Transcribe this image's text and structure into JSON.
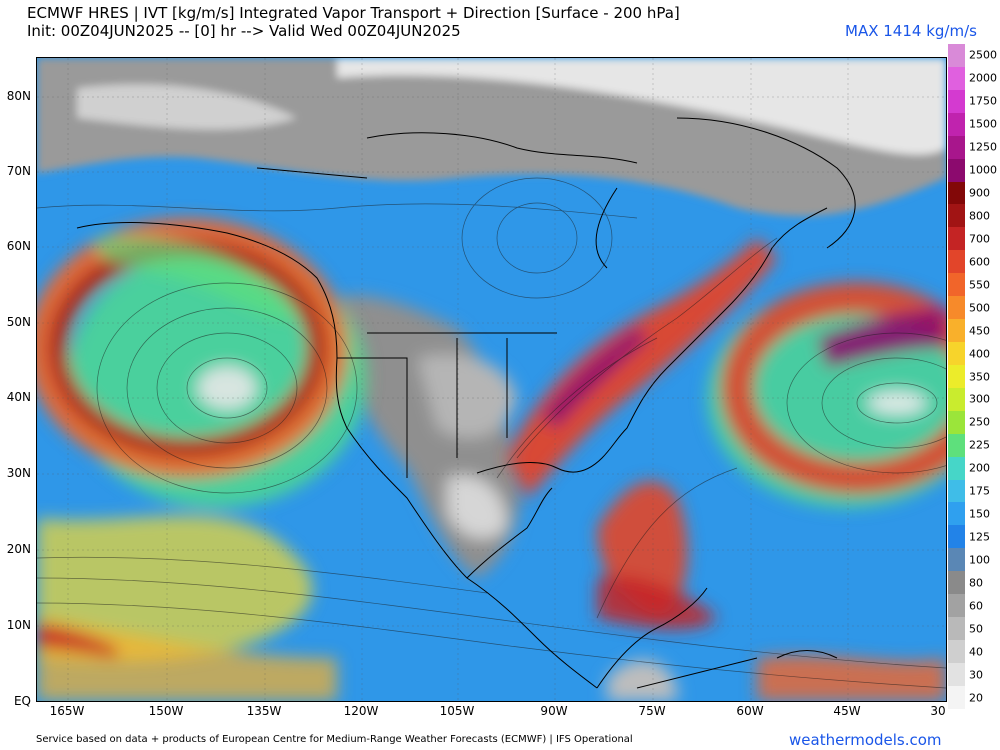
{
  "header": {
    "title": "ECMWF HRES | IVT [kg/m/s] Integrated Vapor Transport + Direction [Surface - 200 hPa]",
    "subtitle": "Init: 00Z04JUN2025 -- [0] hr --> Valid Wed 00Z04JUN2025",
    "max_label": "MAX 1414 kg/m/s"
  },
  "map": {
    "lat_labels": [
      "80N",
      "70N",
      "60N",
      "50N",
      "40N",
      "30N",
      "20N",
      "10N",
      "EQ"
    ],
    "lon_labels": [
      "165W",
      "150W",
      "135W",
      "120W",
      "105W",
      "90W",
      "75W",
      "60W",
      "45W",
      "30"
    ],
    "colors": {
      "ocean_background": "#2f97e8",
      "dry_gray": "#9a9a9a",
      "high_ivt": "#c01818"
    }
  },
  "colorbar": {
    "levels": [
      "20",
      "30",
      "40",
      "50",
      "60",
      "80",
      "100",
      "125",
      "150",
      "175",
      "200",
      "225",
      "250",
      "300",
      "350",
      "400",
      "450",
      "500",
      "550",
      "600",
      "700",
      "800",
      "900",
      "1000",
      "1250",
      "1500",
      "1750",
      "2000",
      "2500"
    ],
    "colors": [
      "#f4f4f4",
      "#e2e2e2",
      "#cfcfcf",
      "#b9b9b9",
      "#a2a2a2",
      "#8a8a8a",
      "#5a87b5",
      "#2283e8",
      "#2fa0ef",
      "#3fbde8",
      "#46d6c8",
      "#5ee07c",
      "#9be53a",
      "#c9ec2e",
      "#ecec2a",
      "#f7d42b",
      "#f9b02b",
      "#f78a2a",
      "#f1652a",
      "#e2452a",
      "#c42424",
      "#a11414",
      "#820808",
      "#8c0a6e",
      "#a8168c",
      "#c023ae",
      "#d43ad0",
      "#e060df",
      "#d98ad8"
    ]
  },
  "footer": {
    "credit": "Service based on data + products of European Centre for Medium-Range Weather Forecasts (ECMWF) | IFS Operational",
    "site": "weathermodels.com"
  }
}
